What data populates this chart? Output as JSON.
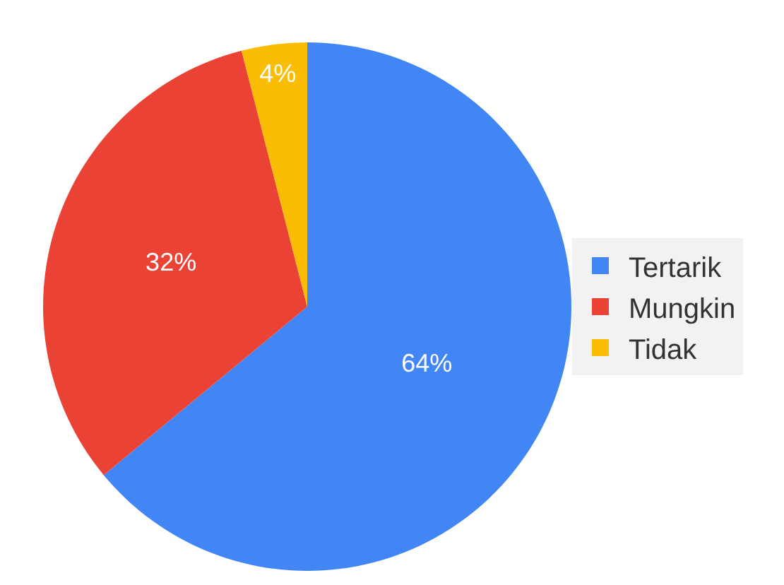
{
  "chart_data": {
    "type": "pie",
    "categories": [
      "Tertarik",
      "Mungkin",
      "Tidak"
    ],
    "values": [
      64,
      32,
      4
    ],
    "colors": [
      "#4285f4",
      "#ea4335",
      "#fbbc04"
    ],
    "value_labels": [
      "64%",
      "32%",
      "4%"
    ],
    "legend": "right"
  }
}
